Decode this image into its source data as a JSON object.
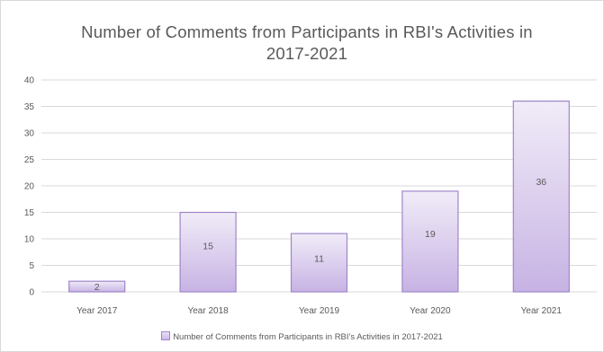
{
  "chart_data": {
    "type": "bar",
    "title_lines": [
      "Number of Comments from Participants in RBI's Activities in",
      "2017-2021"
    ],
    "categories": [
      "Year 2017",
      "Year 2018",
      "Year 2019",
      "Year 2020",
      "Year 2021"
    ],
    "series": [
      {
        "name": "Number of Comments from Participants in RBI's Activities in 2017-2021",
        "values": [
          2,
          15,
          11,
          19,
          36
        ]
      }
    ],
    "data_labels": [
      "2",
      "15",
      "11",
      "19",
      "36"
    ],
    "ylim": [
      0,
      40
    ],
    "y_ticks": [
      0,
      5,
      10,
      15,
      20,
      25,
      30,
      35,
      40
    ],
    "y_tick_labels": [
      "0",
      "5",
      "10",
      "15",
      "20",
      "25",
      "30",
      "35",
      "40"
    ],
    "grid": true,
    "legend_position": "bottom",
    "colors": {
      "bar_top": "#f1ecf8",
      "bar_bottom": "#c7b3e4",
      "bar_border": "#9f86c9",
      "grid": "#d9d9d9",
      "text": "#595959"
    }
  }
}
